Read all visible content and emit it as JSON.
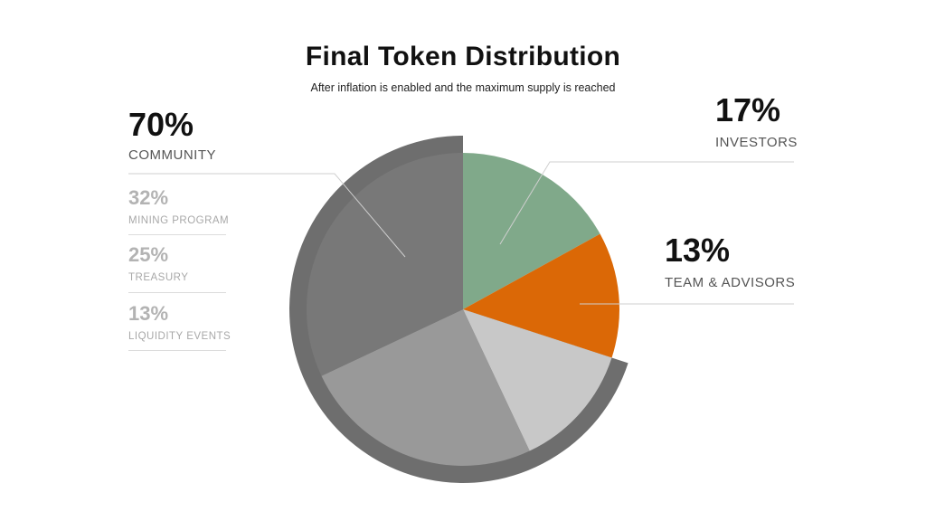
{
  "title": "Final Token Distribution",
  "subtitle": "After inflation is enabled and the maximum supply is reached",
  "community": {
    "percent": "70%",
    "label": "COMMUNITY",
    "breakdown": [
      {
        "percent": "32%",
        "label": "MINING PROGRAM"
      },
      {
        "percent": "25%",
        "label": "TREASURY"
      },
      {
        "percent": "13%",
        "label": "LIQUIDITY EVENTS"
      }
    ]
  },
  "investors": {
    "percent": "17%",
    "label": "INVESTORS"
  },
  "team": {
    "percent": "13%",
    "label": "TEAM & ADVISORS"
  },
  "colors": {
    "investors": "#80a98a",
    "team": "#db6806",
    "liquidity": "#c8c8c8",
    "treasury": "#999999",
    "mining": "#787878",
    "community_ring": "#6e6e6e",
    "leader": "#cfcfcf"
  },
  "chart_data": {
    "type": "pie",
    "title": "Final Token Distribution",
    "subtitle": "After inflation is enabled and the maximum supply is reached",
    "start": "top",
    "direction": "clockwise",
    "slices": [
      {
        "label": "INVESTORS",
        "value": 17,
        "color": "#80a98a"
      },
      {
        "label": "TEAM & ADVISORS",
        "value": 13,
        "color": "#db6806"
      },
      {
        "label": "LIQUIDITY EVENTS",
        "value": 13,
        "color": "#c8c8c8",
        "group": "COMMUNITY"
      },
      {
        "label": "TREASURY",
        "value": 25,
        "color": "#999999",
        "group": "COMMUNITY"
      },
      {
        "label": "MINING PROGRAM",
        "value": 32,
        "color": "#787878",
        "group": "COMMUNITY"
      }
    ],
    "groups": [
      {
        "label": "COMMUNITY",
        "value": 70,
        "color": "#6e6e6e"
      }
    ]
  }
}
